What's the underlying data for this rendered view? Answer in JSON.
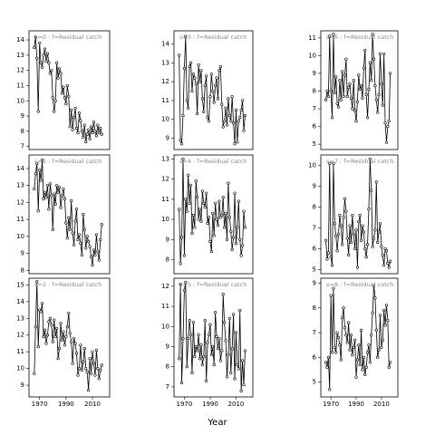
{
  "xlabel": "Year",
  "chart_data": [
    {
      "type": "line",
      "title": "s=0  :  f=Residual catch",
      "color": "#000000",
      "marker": "circle",
      "x": [
        1966,
        1967,
        1968,
        1969,
        1970,
        1971,
        1972,
        1973,
        1974,
        1975,
        1976,
        1977,
        1978,
        1979,
        1980,
        1981,
        1982,
        1983,
        1984,
        1985,
        1986,
        1987,
        1988,
        1989,
        1990,
        1991,
        1992,
        1993,
        1994,
        1995,
        1996,
        1997,
        1998,
        1999,
        2000,
        2001,
        2002,
        2003,
        2004,
        2005,
        2006,
        2007,
        2008,
        2009,
        2010,
        2011,
        2012,
        2013,
        2014,
        2015,
        2016,
        2017
      ],
      "values": [
        13.5,
        14.2,
        12.8,
        9.3,
        13.8,
        12.5,
        12.2,
        13.0,
        13.4,
        12.6,
        13.1,
        12.5,
        11.8,
        12.0,
        10.2,
        9.3,
        10.0,
        12.5,
        11.5,
        12.1,
        11.8,
        10.5,
        10.9,
        10.2,
        9.8,
        11.0,
        10.3,
        8.3,
        9.4,
        8.1,
        8.9,
        9.5,
        8.2,
        7.9,
        9.2,
        8.7,
        8.0,
        7.6,
        8.4,
        7.3,
        7.8,
        8.1,
        7.5,
        8.3,
        7.9,
        8.6,
        8.0,
        7.7,
        8.4,
        7.9,
        8.2,
        7.8
      ],
      "xlim": [
        1962,
        2023
      ],
      "ylim": [
        6.8,
        14.6
      ],
      "yticks": [
        7,
        8,
        9,
        10,
        11,
        12,
        13,
        14
      ]
    },
    {
      "type": "line",
      "title": "s=1  :  f=Residual catch",
      "color": "#000000",
      "marker": "circle",
      "x": [
        1966,
        1967,
        1968,
        1969,
        1970,
        1971,
        1972,
        1973,
        1974,
        1975,
        1976,
        1977,
        1978,
        1979,
        1980,
        1981,
        1982,
        1983,
        1984,
        1985,
        1986,
        1987,
        1988,
        1989,
        1990,
        1991,
        1992,
        1993,
        1994,
        1995,
        1996,
        1997,
        1998,
        1999,
        2000,
        2001,
        2002,
        2003,
        2004,
        2005,
        2006,
        2007,
        2008,
        2009,
        2010,
        2011,
        2012,
        2013,
        2014,
        2015,
        2016,
        2017
      ],
      "values": [
        12.8,
        13.7,
        14.3,
        11.5,
        13.9,
        13.3,
        14.5,
        12.2,
        12.6,
        12.3,
        13.0,
        11.6,
        13.1,
        12.4,
        10.4,
        12.5,
        11.9,
        13.0,
        12.6,
        12.9,
        11.7,
        12.4,
        12.8,
        12.2,
        10.8,
        9.9,
        11.1,
        10.4,
        12.1,
        10.2,
        9.5,
        10.9,
        11.6,
        9.8,
        10.1,
        9.6,
        8.9,
        11.3,
        10.4,
        9.3,
        10.0,
        9.7,
        9.4,
        8.8,
        8.3,
        9.2,
        8.9,
        10.1,
        9.1,
        8.6,
        9.8,
        10.7
      ],
      "xlim": [
        1962,
        2023
      ],
      "ylim": [
        7.8,
        14.8
      ],
      "yticks": [
        8,
        9,
        10,
        11,
        12,
        13,
        14
      ]
    },
    {
      "type": "line",
      "title": "s=2  :  f=Residual catch",
      "color": "#000000",
      "marker": "circle",
      "x": [
        1966,
        1967,
        1968,
        1969,
        1970,
        1971,
        1972,
        1973,
        1974,
        1975,
        1976,
        1977,
        1978,
        1979,
        1980,
        1981,
        1982,
        1983,
        1984,
        1985,
        1986,
        1987,
        1988,
        1989,
        1990,
        1991,
        1992,
        1993,
        1994,
        1995,
        1996,
        1997,
        1998,
        1999,
        2000,
        2001,
        2002,
        2003,
        2004,
        2005,
        2006,
        2007,
        2008,
        2009,
        2010,
        2011,
        2012,
        2013,
        2014,
        2015,
        2016,
        2017
      ],
      "values": [
        9.7,
        12.5,
        15.2,
        11.3,
        13.5,
        13.4,
        13.9,
        11.9,
        12.3,
        11.5,
        12.0,
        12.8,
        13.0,
        12.6,
        11.6,
        12.9,
        11.9,
        12.4,
        10.6,
        11.2,
        12.7,
        11.7,
        12.2,
        11.4,
        11.9,
        12.5,
        13.3,
        12.1,
        11.6,
        10.3,
        11.8,
        11.5,
        10.9,
        9.6,
        10.0,
        11.4,
        9.9,
        10.4,
        11.2,
        10.0,
        9.8,
        8.7,
        10.6,
        9.7,
        11.0,
        10.3,
        9.6,
        11.1,
        10.0,
        9.4,
        9.9,
        10.2
      ],
      "xlim": [
        1962,
        2023
      ],
      "ylim": [
        8.3,
        15.4
      ],
      "yticks": [
        9,
        10,
        11,
        12,
        13,
        14,
        15
      ],
      "xticks": [
        1970,
        1990,
        2010
      ]
    },
    {
      "type": "line",
      "title": "s=3  :  f=Residual catch",
      "color": "#000000",
      "marker": "circle",
      "x": [
        1966,
        1967,
        1968,
        1969,
        1970,
        1971,
        1972,
        1973,
        1974,
        1975,
        1976,
        1977,
        1978,
        1979,
        1980,
        1981,
        1982,
        1983,
        1984,
        1985,
        1986,
        1987,
        1988,
        1989,
        1990,
        1991,
        1992,
        1993,
        1994,
        1995,
        1996,
        1997,
        1998,
        1999,
        2000,
        2001,
        2002,
        2003,
        2004,
        2005,
        2006,
        2007,
        2008,
        2009,
        2010,
        2011,
        2012,
        2013,
        2014,
        2015,
        2016,
        2017
      ],
      "values": [
        13.4,
        8.9,
        8.7,
        10.2,
        12.7,
        14.4,
        11.0,
        10.6,
        12.8,
        13.0,
        11.5,
        12.4,
        12.2,
        11.9,
        10.3,
        12.9,
        12.0,
        12.6,
        11.1,
        10.4,
        11.8,
        12.3,
        10.1,
        9.9,
        11.2,
        12.4,
        11.5,
        10.9,
        11.8,
        12.2,
        11.1,
        12.6,
        12.8,
        10.8,
        9.6,
        9.9,
        10.6,
        9.7,
        11.1,
        10.2,
        9.9,
        11.2,
        9.8,
        8.7,
        10.5,
        8.8,
        9.9,
        10.1,
        10.5,
        11.0,
        9.4,
        10.2
      ],
      "xlim": [
        1962,
        2023
      ],
      "ylim": [
        8.4,
        14.7
      ],
      "yticks": [
        9,
        10,
        11,
        12,
        13,
        14
      ]
    },
    {
      "type": "line",
      "title": "s=4  :  f=Residual catch",
      "color": "#000000",
      "marker": "circle",
      "x": [
        1966,
        1967,
        1968,
        1969,
        1970,
        1971,
        1972,
        1973,
        1974,
        1975,
        1976,
        1977,
        1978,
        1979,
        1980,
        1981,
        1982,
        1983,
        1984,
        1985,
        1986,
        1987,
        1988,
        1989,
        1990,
        1991,
        1992,
        1993,
        1994,
        1995,
        1996,
        1997,
        1998,
        1999,
        2000,
        2001,
        2002,
        2003,
        2004,
        2005,
        2006,
        2007,
        2008,
        2009,
        2010,
        2011,
        2012,
        2013,
        2014,
        2015,
        2016,
        2017
      ],
      "values": [
        10.5,
        7.8,
        9.1,
        13.0,
        8.2,
        11.0,
        10.4,
        12.2,
        10.8,
        11.7,
        9.3,
        10.2,
        9.6,
        11.9,
        11.1,
        10.0,
        10.5,
        9.9,
        11.4,
        10.8,
        10.6,
        11.3,
        9.8,
        10.1,
        8.9,
        8.4,
        10.3,
        9.2,
        10.8,
        10.0,
        9.7,
        10.9,
        10.1,
        10.2,
        11.1,
        9.6,
        10.3,
        9.0,
        11.8,
        10.1,
        9.4,
        8.5,
        9.1,
        11.3,
        8.8,
        9.6,
        10.9,
        9.0,
        8.2,
        8.7,
        10.4,
        9.6
      ],
      "xlim": [
        1962,
        2023
      ],
      "ylim": [
        7.3,
        13.2
      ],
      "yticks": [
        8,
        9,
        10,
        11,
        12,
        13
      ]
    },
    {
      "type": "line",
      "title": "s=5  :  f=Residual catch",
      "color": "#000000",
      "marker": "circle",
      "x": [
        1966,
        1967,
        1968,
        1969,
        1970,
        1971,
        1972,
        1973,
        1974,
        1975,
        1976,
        1977,
        1978,
        1979,
        1980,
        1981,
        1982,
        1983,
        1984,
        1985,
        1986,
        1987,
        1988,
        1989,
        1990,
        1991,
        1992,
        1993,
        1994,
        1995,
        1996,
        1997,
        1998,
        1999,
        2000,
        2001,
        2002,
        2003,
        2004,
        2005,
        2006,
        2007,
        2008,
        2009,
        2010,
        2011,
        2012,
        2013,
        2014,
        2015,
        2016,
        2017
      ],
      "values": [
        8.4,
        12.1,
        7.2,
        9.4,
        11.8,
        12.2,
        8.0,
        9.4,
        10.3,
        9.6,
        7.7,
        10.2,
        8.5,
        9.0,
        8.8,
        9.6,
        8.4,
        9.1,
        8.1,
        8.5,
        10.3,
        7.3,
        9.2,
        9.6,
        10.1,
        8.6,
        9.0,
        8.1,
        10.7,
        9.5,
        8.9,
        9.4,
        8.3,
        8.8,
        11.6,
        10.2,
        9.3,
        7.5,
        8.6,
        10.4,
        7.7,
        8.9,
        10.6,
        7.4,
        9.7,
        8.1,
        7.9,
        10.8,
        6.8,
        8.3,
        7.1,
        8.8
      ],
      "xlim": [
        1962,
        2023
      ],
      "ylim": [
        6.5,
        12.4
      ],
      "yticks": [
        7,
        8,
        9,
        10,
        11,
        12
      ],
      "xticks": [
        1970,
        1990,
        2010
      ]
    },
    {
      "type": "line",
      "title": "s=6  :  f=Residual catch",
      "color": "#000000",
      "marker": "circle",
      "x": [
        1966,
        1967,
        1968,
        1969,
        1970,
        1971,
        1972,
        1973,
        1974,
        1975,
        1976,
        1977,
        1978,
        1979,
        1980,
        1981,
        1982,
        1983,
        1984,
        1985,
        1986,
        1987,
        1988,
        1989,
        1990,
        1991,
        1992,
        1993,
        1994,
        1995,
        1996,
        1997,
        1998,
        1999,
        2000,
        2001,
        2002,
        2003,
        2004,
        2005,
        2006,
        2007,
        2008,
        2009,
        2010,
        2011,
        2012,
        2013,
        2014,
        2015,
        2016,
        2017
      ],
      "values": [
        7.5,
        8.0,
        7.7,
        11.1,
        8.0,
        6.5,
        11.2,
        7.9,
        8.8,
        7.3,
        7.1,
        8.6,
        7.5,
        9.1,
        7.7,
        8.9,
        9.8,
        7.7,
        8.2,
        8.4,
        7.6,
        7.0,
        8.6,
        6.9,
        6.3,
        7.4,
        8.9,
        8.1,
        8.3,
        7.6,
        9.3,
        10.3,
        7.8,
        6.5,
        8.1,
        9.6,
        8.6,
        11.2,
        9.8,
        8.3,
        7.5,
        6.8,
        7.8,
        10.1,
        8.4,
        7.2,
        10.1,
        6.2,
        5.1,
        6.0,
        6.3,
        9.0
      ],
      "xlim": [
        1962,
        2023
      ],
      "ylim": [
        4.7,
        11.4
      ],
      "yticks": [
        5,
        6,
        7,
        8,
        9,
        10,
        11
      ]
    },
    {
      "type": "line",
      "title": "s=7  :  f=Residual catch",
      "color": "#000000",
      "marker": "circle",
      "x": [
        1966,
        1967,
        1968,
        1969,
        1970,
        1971,
        1972,
        1973,
        1974,
        1975,
        1976,
        1977,
        1978,
        1979,
        1980,
        1981,
        1982,
        1983,
        1984,
        1985,
        1986,
        1987,
        1988,
        1989,
        1990,
        1991,
        1992,
        1993,
        1994,
        1995,
        1996,
        1997,
        1998,
        1999,
        2000,
        2001,
        2002,
        2003,
        2004,
        2005,
        2006,
        2007,
        2008,
        2009,
        2010,
        2011,
        2012,
        2013,
        2014,
        2015,
        2016,
        2017
      ],
      "values": [
        6.4,
        5.5,
        5.8,
        10.1,
        5.6,
        5.2,
        10.1,
        7.2,
        6.6,
        5.9,
        6.7,
        7.6,
        7.1,
        6.2,
        7.5,
        8.4,
        7.8,
        6.5,
        5.7,
        7.1,
        6.3,
        7.6,
        6.7,
        6.0,
        6.9,
        5.1,
        7.3,
        7.6,
        6.4,
        7.1,
        6.8,
        6.0,
        5.6,
        6.2,
        7.9,
        10.3,
        8.8,
        6.1,
        6.5,
        6.9,
        9.2,
        6.3,
        6.8,
        7.2,
        6.1,
        5.7,
        5.2,
        6.0,
        5.9,
        5.3,
        5.1,
        5.4
      ],
      "xlim": [
        1962,
        2023
      ],
      "ylim": [
        4.8,
        10.5
      ],
      "yticks": [
        5,
        6,
        7,
        8,
        9,
        10
      ]
    },
    {
      "type": "line",
      "title": "s=8  :  f=Residual catch",
      "color": "#000000",
      "marker": "circle",
      "x": [
        1966,
        1967,
        1968,
        1969,
        1970,
        1971,
        1972,
        1973,
        1974,
        1975,
        1976,
        1977,
        1978,
        1979,
        1980,
        1981,
        1982,
        1983,
        1984,
        1985,
        1986,
        1987,
        1988,
        1989,
        1990,
        1991,
        1992,
        1993,
        1994,
        1995,
        1996,
        1997,
        1998,
        1999,
        2000,
        2001,
        2002,
        2003,
        2004,
        2005,
        2006,
        2007,
        2008,
        2009,
        2010,
        2011,
        2012,
        2013,
        2014,
        2015,
        2016,
        2017
      ],
      "values": [
        5.8,
        5.6,
        6.0,
        4.7,
        8.5,
        6.2,
        8.8,
        6.4,
        6.2,
        7.0,
        6.8,
        6.5,
        5.9,
        7.6,
        8.0,
        7.2,
        6.9,
        6.6,
        7.4,
        6.3,
        6.9,
        6.1,
        6.4,
        6.7,
        5.2,
        5.9,
        6.5,
        5.7,
        7.1,
        5.5,
        6.0,
        5.3,
        5.6,
        6.2,
        6.5,
        5.8,
        6.9,
        7.8,
        8.9,
        8.4,
        7.1,
        6.0,
        6.3,
        7.7,
        6.4,
        6.7,
        7.9,
        7.3,
        8.1,
        7.5,
        5.6,
        5.8
      ],
      "xlim": [
        1962,
        2023
      ],
      "ylim": [
        4.4,
        9.2
      ],
      "yticks": [
        5,
        6,
        7,
        8,
        9
      ],
      "xticks": [
        1970,
        1990,
        2010
      ]
    }
  ]
}
